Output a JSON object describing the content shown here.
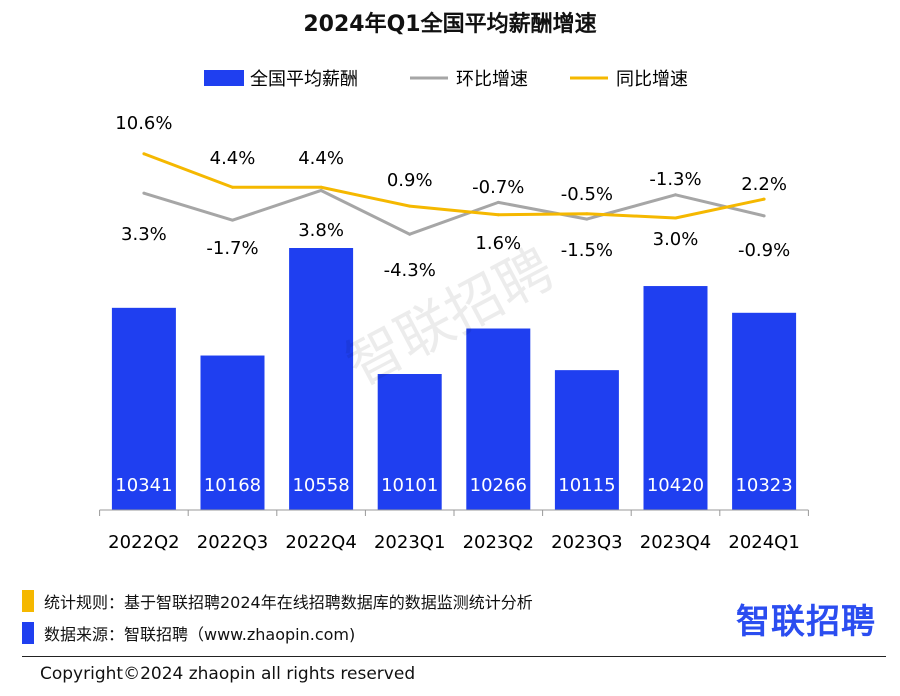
{
  "title": "2024年Q1全国平均薪酬增速",
  "legend": {
    "salary": "全国平均薪酬",
    "mom": "环比增速",
    "yoy": "同比增速"
  },
  "colors": {
    "bar": "#1f3ff0",
    "mom": "#a6a6a6",
    "yoy": "#f5b800",
    "note1": "#f5b800",
    "note2": "#1f3ff0",
    "logo": "#2b4df0"
  },
  "watermark": "智联招聘",
  "chart_data": {
    "type": "bar",
    "categories": [
      "2022Q2",
      "2022Q3",
      "2022Q4",
      "2023Q1",
      "2023Q2",
      "2023Q3",
      "2023Q4",
      "2024Q1"
    ],
    "series": [
      {
        "name": "全国平均薪酬",
        "type": "bar",
        "values": [
          10341,
          10168,
          10558,
          10101,
          10266,
          10115,
          10420,
          10323
        ],
        "labels": [
          "10341",
          "10168",
          "10558",
          "10101",
          "10266",
          "10115",
          "10420",
          "10323"
        ]
      },
      {
        "name": "环比增速",
        "type": "line",
        "values": [
          3.3,
          -1.7,
          3.8,
          -4.3,
          1.6,
          -1.5,
          3.0,
          -0.9
        ],
        "labels": [
          "3.3%",
          "-1.7%",
          "3.8%",
          "-4.3%",
          "1.6%",
          "-1.5%",
          "3.0%",
          "-0.9%"
        ]
      },
      {
        "name": "同比增速",
        "type": "line",
        "values": [
          10.6,
          4.4,
          4.4,
          0.9,
          -0.7,
          -0.5,
          -1.3,
          2.2
        ],
        "labels": [
          "10.6%",
          "4.4%",
          "4.4%",
          "0.9%",
          "-0.7%",
          "-0.5%",
          "-1.3%",
          "2.2%"
        ]
      }
    ],
    "legend_position": "top",
    "grid": false
  },
  "footer": {
    "note1": "统计规则：基于智联招聘2024年在线招聘数据库的数据监测统计分析",
    "note2": "数据来源：智联招聘（www.zhaopin.com)",
    "logo": "智联招聘",
    "copyright": "Copyright©2024 zhaopin all rights reserved"
  }
}
